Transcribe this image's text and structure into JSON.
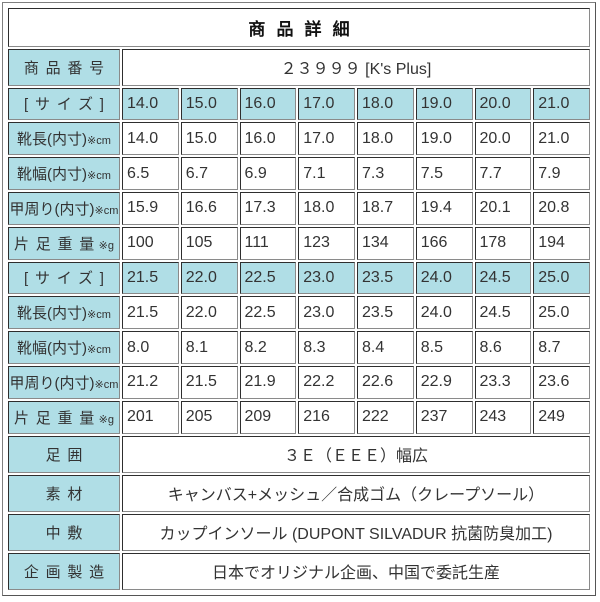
{
  "header": {
    "title": "商品詳細"
  },
  "colors": {
    "label_bg": "#b0dee6",
    "value_bg": "#ffffff",
    "border_dark": "#2e2e2e",
    "border_light": "#8a8a8a",
    "frame_border": "#7f7f7f",
    "text": "#333333"
  },
  "table": {
    "rows": [
      {
        "kind": "wide",
        "spaced": true,
        "label": "商品番号",
        "value": "２３９９９ [K's Plus]"
      },
      {
        "kind": "sizes",
        "spaced": true,
        "label": "[サイズ]",
        "values": [
          "14.0",
          "15.0",
          "16.0",
          "17.0",
          "18.0",
          "19.0",
          "20.0",
          "21.0"
        ]
      },
      {
        "kind": "measure",
        "label": "靴長(内寸)",
        "unit": "※cm",
        "values": [
          "14.0",
          "15.0",
          "16.0",
          "17.0",
          "18.0",
          "19.0",
          "20.0",
          "21.0"
        ]
      },
      {
        "kind": "measure",
        "label": "靴幅(内寸)",
        "unit": "※cm",
        "values": [
          "6.5",
          "6.7",
          "6.9",
          "7.1",
          "7.3",
          "7.5",
          "7.7",
          "7.9"
        ]
      },
      {
        "kind": "measure",
        "label": "甲周り(内寸)",
        "unit": "※cm",
        "values": [
          "15.9",
          "16.6",
          "17.3",
          "18.0",
          "18.7",
          "19.4",
          "20.1",
          "20.8"
        ]
      },
      {
        "kind": "measure",
        "spaced": true,
        "label": "片足重量",
        "unit": "※g",
        "values": [
          "100",
          "105",
          "111",
          "123",
          "134",
          "166",
          "178",
          "194"
        ]
      },
      {
        "kind": "sizes",
        "spaced": true,
        "label": "[サイズ]",
        "values": [
          "21.5",
          "22.0",
          "22.5",
          "23.0",
          "23.5",
          "24.0",
          "24.5",
          "25.0"
        ]
      },
      {
        "kind": "measure",
        "label": "靴長(内寸)",
        "unit": "※cm",
        "values": [
          "21.5",
          "22.0",
          "22.5",
          "23.0",
          "23.5",
          "24.0",
          "24.5",
          "25.0"
        ]
      },
      {
        "kind": "measure",
        "label": "靴幅(内寸)",
        "unit": "※cm",
        "values": [
          "8.0",
          "8.1",
          "8.2",
          "8.3",
          "8.4",
          "8.5",
          "8.6",
          "8.7"
        ]
      },
      {
        "kind": "measure",
        "label": "甲周り(内寸)",
        "unit": "※cm",
        "values": [
          "21.2",
          "21.5",
          "21.9",
          "22.2",
          "22.6",
          "22.9",
          "23.3",
          "23.6"
        ]
      },
      {
        "kind": "measure",
        "spaced": true,
        "label": "片足重量",
        "unit": "※g",
        "values": [
          "201",
          "205",
          "209",
          "216",
          "222",
          "237",
          "243",
          "249"
        ]
      },
      {
        "kind": "wide",
        "spaced": true,
        "label": "足囲",
        "value": "３Ｅ（ＥＥＥ）幅広"
      },
      {
        "kind": "wide",
        "spaced": true,
        "label": "素材",
        "value": "キャンバス+メッシュ／合成ゴム（クレープソール）"
      },
      {
        "kind": "wide",
        "spaced": true,
        "label": "中敷",
        "value": "カップインソール (DUPONT SILVADUR 抗菌防臭加工)"
      },
      {
        "kind": "wide",
        "spaced": true,
        "label": "企画製造",
        "value": "日本でオリジナル企画、中国で委託生産"
      }
    ]
  }
}
